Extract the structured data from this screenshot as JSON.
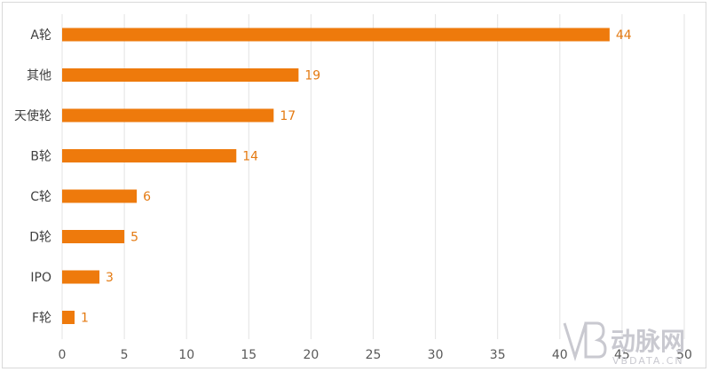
{
  "chart_data": {
    "type": "bar",
    "orientation": "horizontal",
    "categories": [
      "A轮",
      "其他",
      "天使轮",
      "B轮",
      "C轮",
      "D轮",
      "IPO",
      "F轮"
    ],
    "values": [
      44,
      19,
      17,
      14,
      6,
      5,
      3,
      1
    ],
    "value_labels": [
      "44",
      "19",
      "17",
      "14",
      "6",
      "5",
      "3",
      "1"
    ],
    "xlim": [
      0,
      50
    ],
    "x_ticks": [
      0,
      5,
      10,
      15,
      20,
      25,
      30,
      35,
      40,
      45,
      50
    ],
    "x_tick_labels": [
      "0",
      "5",
      "10",
      "15",
      "20",
      "25",
      "30",
      "35",
      "40",
      "45",
      "50"
    ],
    "grid": true,
    "bar_color": "#ee7a0c",
    "label_color": "#e47a12",
    "title": "",
    "xlabel": "",
    "ylabel": ""
  },
  "watermark": {
    "brand_cn": "动脉网",
    "brand_en": "VBDATA.CN",
    "color": "#c9c9d0"
  }
}
